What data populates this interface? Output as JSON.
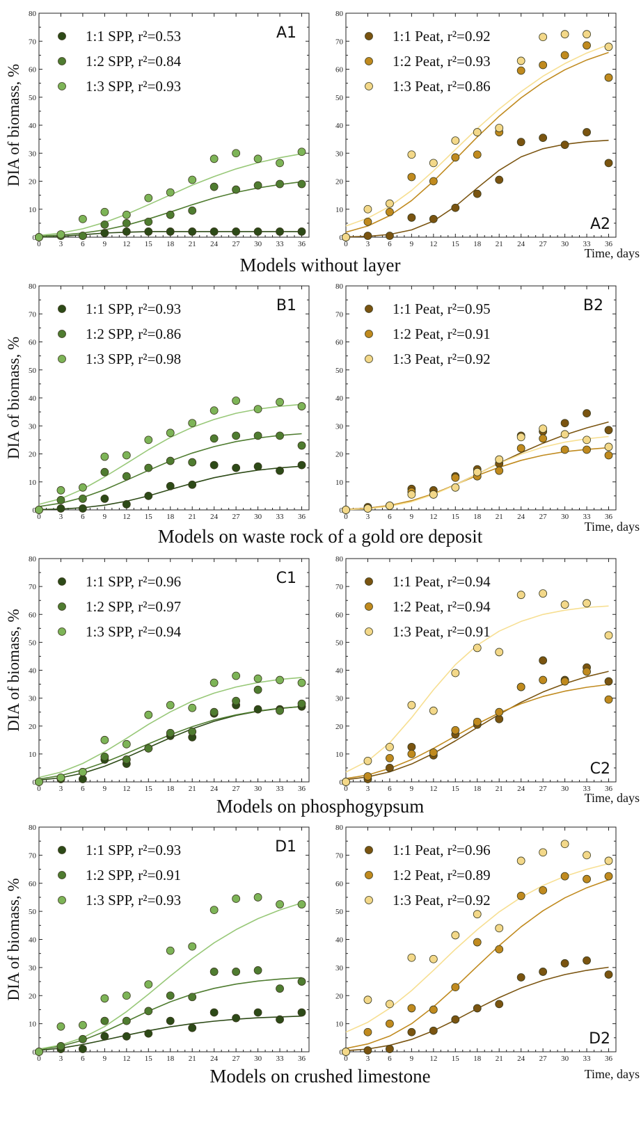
{
  "figure": {
    "y_label": "DIA of biomass, %",
    "x_label": "Time, days",
    "row_titles": [
      "Models without layer",
      "Models on waste rock of a gold ore deposit",
      "Models on phosphogypsum",
      "Models on crushed limestone"
    ]
  },
  "colors": {
    "spp_1_1": "#2d4a17",
    "spp_1_2": "#4f7c30",
    "spp_1_3": "#7db457",
    "spp_curve_1_3": "#98c878",
    "peat_1_1": "#7a5410",
    "peat_1_2": "#c08a1e",
    "peat_1_3": "#f3d889",
    "peat_curve_1_3": "#f7df92"
  },
  "chart_data": [
    {
      "panel": "A1",
      "type": "scatter",
      "xlim": [
        0,
        37
      ],
      "ylim": [
        0,
        80
      ],
      "x": [
        0,
        3,
        6,
        9,
        12,
        15,
        18,
        21,
        24,
        27,
        30,
        33,
        36
      ],
      "series": [
        {
          "name": "1:1 SPP",
          "r2": "r²=0.53",
          "values": [
            0,
            0.5,
            0.5,
            1.5,
            2,
            2,
            2,
            2,
            2,
            2,
            2,
            2,
            2
          ],
          "fit": [
            0,
            0.3,
            0.9,
            1.5,
            1.8,
            2,
            2,
            2,
            2,
            2,
            2,
            2,
            2
          ]
        },
        {
          "name": "1:2 SPP",
          "r2": "r²=0.84",
          "values": [
            0,
            0.5,
            0.5,
            4.5,
            5,
            5.5,
            8,
            9.5,
            18,
            17,
            18.5,
            19,
            19
          ],
          "fit": [
            0.4,
            0.8,
            1.5,
            2.6,
            4.3,
            6.5,
            9,
            11.6,
            14,
            16,
            17.6,
            18.8,
            19.8
          ]
        },
        {
          "name": "1:3 SPP",
          "r2": "r²=0.93",
          "values": [
            0,
            1,
            6.5,
            9,
            8,
            14,
            16,
            20.5,
            28,
            30,
            28,
            26.5,
            30.5
          ],
          "fit": [
            0.6,
            1.5,
            3,
            5.3,
            8.2,
            11.6,
            15.1,
            18.6,
            21.7,
            24.4,
            26.6,
            28.4,
            29.8
          ]
        }
      ]
    },
    {
      "panel": "A2",
      "type": "scatter",
      "xlim": [
        0,
        37
      ],
      "ylim": [
        0,
        80
      ],
      "x": [
        0,
        3,
        6,
        9,
        12,
        15,
        18,
        21,
        24,
        27,
        30,
        33,
        36
      ],
      "series": [
        {
          "name": "1:1 Peat",
          "r2": "r²=0.92",
          "values": [
            0,
            0.5,
            0.5,
            7,
            6.5,
            10.5,
            15.5,
            20.5,
            34,
            35.5,
            33,
            37.5,
            26.5
          ],
          "fit": [
            0.1,
            0.3,
            1,
            2.6,
            5.8,
            11,
            17.6,
            23.9,
            28.7,
            31.6,
            33.2,
            34.1,
            34.6
          ]
        },
        {
          "name": "1:2 Peat",
          "r2": "r²=0.93",
          "values": [
            0,
            5.5,
            9,
            21.5,
            20,
            28.5,
            29.5,
            37.5,
            59.5,
            61.5,
            65,
            68.5,
            57
          ],
          "fit": [
            1.8,
            4,
            7.7,
            13.1,
            20,
            27.8,
            35.8,
            43.2,
            49.8,
            55.3,
            59.8,
            63.3,
            66
          ]
        },
        {
          "name": "1:3 Peat",
          "r2": "r²=0.86",
          "values": [
            0,
            10,
            12,
            29.5,
            26.5,
            34.5,
            37.5,
            39,
            63,
            71.5,
            72.5,
            72.5,
            68
          ],
          "fit": [
            4,
            6.8,
            11,
            16.7,
            23.7,
            31.3,
            38.8,
            45.8,
            52,
            57.5,
            62,
            65.8,
            68.8
          ]
        }
      ]
    },
    {
      "panel": "B1",
      "type": "scatter",
      "xlim": [
        0,
        37
      ],
      "ylim": [
        0,
        80
      ],
      "x": [
        0,
        3,
        6,
        9,
        12,
        15,
        18,
        21,
        24,
        27,
        30,
        33,
        36
      ],
      "series": [
        {
          "name": "1:1 SPP",
          "r2": "r²=0.93",
          "values": [
            0,
            0.5,
            0.5,
            4,
            2,
            5,
            8.5,
            9,
            16,
            15,
            15.5,
            14,
            16
          ],
          "fit": [
            0.1,
            0.3,
            0.8,
            1.7,
            3.1,
            5,
            7.3,
            9.5,
            11.5,
            13,
            14.2,
            15,
            15.6
          ]
        },
        {
          "name": "1:2 SPP",
          "r2": "r²=0.86",
          "values": [
            0,
            3.5,
            4,
            13.5,
            12,
            15,
            17.5,
            17,
            25.5,
            26.5,
            26.5,
            26.5,
            23
          ],
          "fit": [
            1.2,
            2.4,
            4.4,
            7.2,
            10.6,
            14.1,
            17.5,
            20.3,
            22.6,
            24.4,
            25.7,
            26.6,
            27.2
          ]
        },
        {
          "name": "1:3 SPP",
          "r2": "r²=0.98",
          "values": [
            0,
            7,
            8,
            19,
            19.5,
            25,
            27.5,
            31,
            35.5,
            39,
            36,
            38.5,
            37
          ],
          "fit": [
            2,
            4,
            7.4,
            11.8,
            16.6,
            21.5,
            25.9,
            29.5,
            32.3,
            34.5,
            36,
            37,
            37.7
          ]
        }
      ]
    },
    {
      "panel": "B2",
      "type": "scatter",
      "xlim": [
        0,
        37
      ],
      "ylim": [
        0,
        80
      ],
      "x": [
        0,
        3,
        6,
        9,
        12,
        15,
        18,
        21,
        24,
        27,
        30,
        33,
        36
      ],
      "series": [
        {
          "name": "1:1 Peat",
          "r2": "r²=0.95",
          "values": [
            0,
            1,
            1.5,
            7.5,
            7,
            12,
            14.5,
            16.5,
            26.5,
            28,
            31,
            34.5,
            28.5
          ],
          "fit": [
            0.2,
            0.6,
            1.5,
            3.1,
            5.7,
            9,
            12.8,
            16.7,
            20.4,
            23.8,
            26.8,
            29.3,
            31.4
          ]
        },
        {
          "name": "1:2 Peat",
          "r2": "r²=0.91",
          "values": [
            0,
            0.5,
            1.5,
            6.5,
            5.5,
            11.5,
            12,
            14,
            22,
            25.5,
            21.5,
            21.5,
            19.5
          ],
          "fit": [
            0.2,
            0.6,
            1.6,
            3.3,
            5.8,
            9,
            12.3,
            15.2,
            17.7,
            19.5,
            20.8,
            21.6,
            22.2
          ]
        },
        {
          "name": "1:3 Peat",
          "r2": "r²=0.92",
          "values": [
            0,
            0.5,
            1.5,
            5.5,
            5.5,
            8,
            13.5,
            18,
            26,
            29,
            27,
            25,
            22.5
          ],
          "fit": [
            0.1,
            0.4,
            1.3,
            2.9,
            5.5,
            8.9,
            12.8,
            16.6,
            19.9,
            22.4,
            24.2,
            25.4,
            26.2
          ]
        }
      ]
    },
    {
      "panel": "C1",
      "type": "scatter",
      "xlim": [
        0,
        37
      ],
      "ylim": [
        0,
        80
      ],
      "x": [
        0,
        3,
        6,
        9,
        12,
        15,
        18,
        21,
        24,
        27,
        30,
        33,
        36
      ],
      "series": [
        {
          "name": "1:1 SPP",
          "r2": "r²=0.96",
          "values": [
            0,
            1,
            1,
            8,
            6.5,
            12,
            16.5,
            16,
            24.5,
            27.5,
            26,
            26,
            27
          ],
          "fit": [
            0.6,
            1.5,
            3.1,
            5.6,
            8.8,
            12.3,
            15.8,
            19,
            21.7,
            23.8,
            25.3,
            26.3,
            27
          ]
        },
        {
          "name": "1:2 SPP",
          "r2": "r²=0.97",
          "values": [
            0,
            1.5,
            3.5,
            9,
            8,
            12,
            17.5,
            18,
            25,
            29,
            33,
            25.5,
            28
          ],
          "fit": [
            1,
            2.3,
            4.3,
            7,
            10.2,
            13.6,
            16.9,
            19.8,
            22.2,
            24,
            25.4,
            26.4,
            27
          ]
        },
        {
          "name": "1:3 SPP",
          "r2": "r²=0.94",
          "values": [
            0,
            1.5,
            3.5,
            15,
            13.5,
            24,
            27.5,
            26.5,
            35.5,
            38,
            37,
            36.5,
            35.5
          ],
          "fit": [
            1.6,
            3.5,
            6.6,
            10.8,
            15.6,
            20.6,
            25.1,
            28.9,
            31.8,
            34,
            35.6,
            36.7,
            37.4
          ]
        }
      ]
    },
    {
      "panel": "C2",
      "type": "scatter",
      "xlim": [
        0,
        37
      ],
      "ylim": [
        0,
        80
      ],
      "x": [
        0,
        3,
        6,
        9,
        12,
        15,
        18,
        21,
        24,
        27,
        30,
        33,
        36
      ],
      "series": [
        {
          "name": "1:1 Peat",
          "r2": "r²=0.94",
          "values": [
            0,
            1,
            5,
            12.5,
            9.5,
            17,
            20.5,
            22.5,
            34,
            43.5,
            36.5,
            41,
            36
          ],
          "fit": [
            0.8,
            1.8,
            3.6,
            6.4,
            10.2,
            14.7,
            19.5,
            24.2,
            28.5,
            32.2,
            35.2,
            37.7,
            39.6
          ]
        },
        {
          "name": "1:2 Peat",
          "r2": "r²=0.94",
          "values": [
            0,
            2,
            8.5,
            10,
            10.5,
            18.5,
            21.5,
            25,
            34,
            36.5,
            36,
            39.5,
            29.5
          ],
          "fit": [
            1.2,
            2.5,
            4.8,
            8,
            12,
            16.4,
            20.8,
            24.7,
            28,
            30.6,
            32.5,
            33.9,
            34.9
          ]
        },
        {
          "name": "1:3 Peat",
          "r2": "r²=0.91",
          "values": [
            0,
            7.5,
            12.5,
            27.5,
            25.5,
            39,
            48,
            46.5,
            67,
            67.5,
            63.5,
            64,
            52.5
          ],
          "fit": [
            3.5,
            7.5,
            14,
            23,
            33,
            42,
            49,
            54,
            57.5,
            60,
            61.5,
            62.5,
            63
          ]
        }
      ]
    },
    {
      "panel": "D1",
      "type": "scatter",
      "xlim": [
        0,
        37
      ],
      "ylim": [
        0,
        80
      ],
      "x": [
        0,
        3,
        6,
        9,
        12,
        15,
        18,
        21,
        24,
        27,
        30,
        33,
        36
      ],
      "series": [
        {
          "name": "1:1 SPP",
          "r2": "r²=0.93",
          "values": [
            0,
            1,
            1,
            5.5,
            5.5,
            6.5,
            11,
            8.5,
            14,
            12,
            14,
            11.5,
            14
          ],
          "fit": [
            0.5,
            1.3,
            2.6,
            4.2,
            5.9,
            7.5,
            8.9,
            10,
            10.9,
            11.6,
            12.1,
            12.4,
            12.7
          ]
        },
        {
          "name": "1:2 SPP",
          "r2": "r²=0.91",
          "values": [
            0,
            2,
            4.5,
            11,
            11,
            14.5,
            20,
            19.5,
            28.5,
            28.5,
            29,
            22.5,
            25
          ],
          "fit": [
            0.8,
            2,
            4.1,
            7.2,
            10.8,
            14.5,
            17.8,
            20.5,
            22.6,
            24.1,
            25.2,
            25.9,
            26.4
          ]
        },
        {
          "name": "1:3 SPP",
          "r2": "r²=0.93",
          "values": [
            0,
            9,
            9.5,
            19,
            20,
            24,
            36,
            37.5,
            50.5,
            54.5,
            55,
            52.5,
            52.5
          ],
          "fit": [
            1,
            2.4,
            5,
            9,
            14.3,
            20.5,
            27,
            33.2,
            38.8,
            43.5,
            47.4,
            50.5,
            53
          ]
        }
      ]
    },
    {
      "panel": "D2",
      "type": "scatter",
      "xlim": [
        0,
        37
      ],
      "ylim": [
        0,
        80
      ],
      "x": [
        0,
        3,
        6,
        9,
        12,
        15,
        18,
        21,
        24,
        27,
        30,
        33,
        36
      ],
      "series": [
        {
          "name": "1:1 Peat",
          "r2": "r²=0.96",
          "values": [
            0,
            0.5,
            1,
            7,
            7.5,
            11.5,
            15.5,
            17,
            26.5,
            28.5,
            31.5,
            32.5,
            27.5
          ],
          "fit": [
            0.4,
            1,
            2.3,
            4.4,
            7.5,
            11.3,
            15.4,
            19.3,
            22.7,
            25.4,
            27.5,
            29,
            30.1
          ]
        },
        {
          "name": "1:2 Peat",
          "r2": "r²=0.89",
          "values": [
            0,
            7,
            10,
            15.5,
            15,
            23,
            39,
            36.5,
            55.5,
            57.5,
            62.5,
            61.5,
            62.5
          ],
          "fit": [
            1.2,
            2.8,
            5.6,
            10,
            16,
            23,
            30.5,
            37.8,
            44.5,
            50.2,
            54.8,
            58.4,
            61.2
          ]
        },
        {
          "name": "1:3 Peat",
          "r2": "r²=0.92",
          "values": [
            0,
            18.5,
            17,
            33.5,
            33,
            41.5,
            49,
            44,
            68,
            71,
            74,
            70,
            68
          ],
          "fit": [
            7,
            10.5,
            15.5,
            21.8,
            29,
            36.5,
            43.5,
            49.8,
            55,
            59.2,
            62.5,
            65,
            67
          ]
        }
      ]
    }
  ]
}
